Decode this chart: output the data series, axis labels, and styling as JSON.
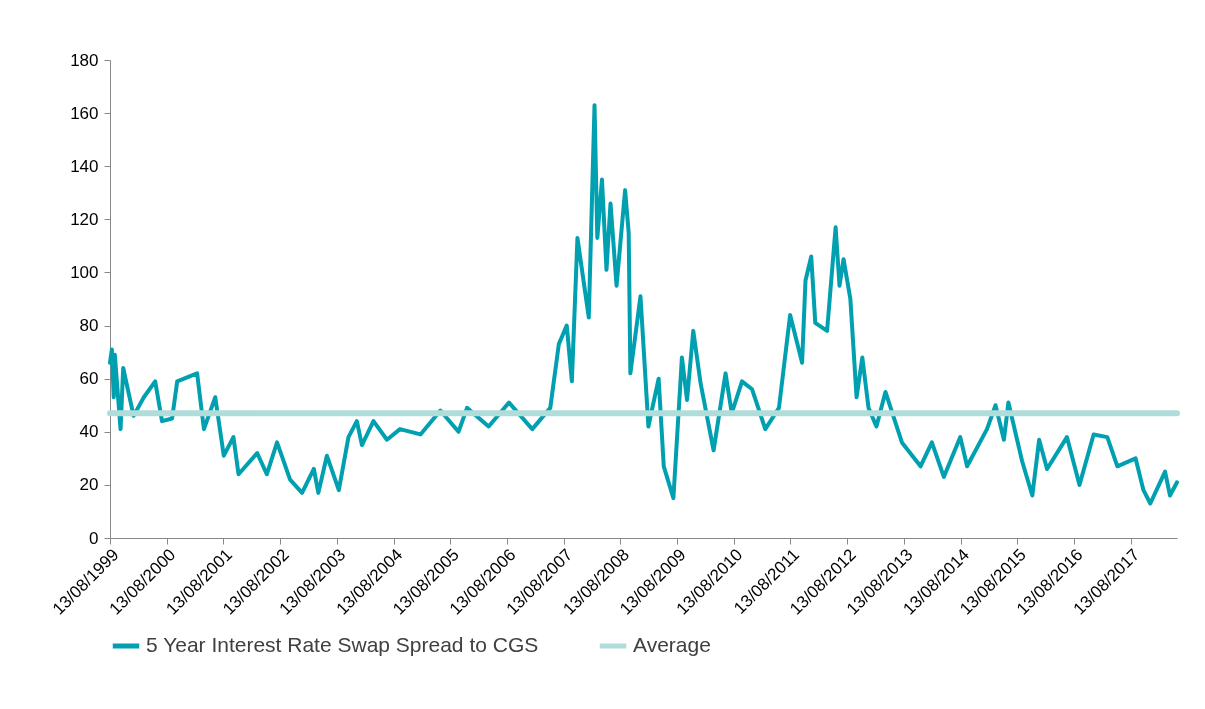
{
  "chart_data": {
    "type": "line",
    "xlim": [
      "1999-08-13",
      "2018-06-07"
    ],
    "ylim": [
      0,
      180
    ],
    "yticks": [
      0,
      20,
      40,
      60,
      80,
      100,
      120,
      140,
      160,
      180
    ],
    "xticks": [
      {
        "value": "1999-08-13",
        "label": "13/08/1999"
      },
      {
        "value": "2000-08-13",
        "label": "13/08/2000"
      },
      {
        "value": "2001-08-13",
        "label": "13/08/2001"
      },
      {
        "value": "2002-08-13",
        "label": "13/08/2002"
      },
      {
        "value": "2003-08-13",
        "label": "13/08/2003"
      },
      {
        "value": "2004-08-13",
        "label": "13/08/2004"
      },
      {
        "value": "2005-08-13",
        "label": "13/08/2005"
      },
      {
        "value": "2006-08-13",
        "label": "13/08/2006"
      },
      {
        "value": "2007-08-13",
        "label": "13/08/2007"
      },
      {
        "value": "2008-08-13",
        "label": "13/08/2008"
      },
      {
        "value": "2009-08-13",
        "label": "13/08/2009"
      },
      {
        "value": "2010-08-13",
        "label": "13/08/2010"
      },
      {
        "value": "2011-08-13",
        "label": "13/08/2011"
      },
      {
        "value": "2012-08-13",
        "label": "13/08/2012"
      },
      {
        "value": "2013-08-13",
        "label": "13/08/2013"
      },
      {
        "value": "2014-08-13",
        "label": "13/08/2014"
      },
      {
        "value": "2015-08-13",
        "label": "13/08/2015"
      },
      {
        "value": "2016-08-13",
        "label": "13/08/2016"
      },
      {
        "value": "2017-08-13",
        "label": "13/08/2017"
      }
    ],
    "legend": "bottom",
    "grid": false,
    "series": [
      {
        "name": "5 Year Interest Rate Swap Spread to CGS",
        "color": "#00a0b0",
        "x": [
          "1999-08-13",
          "1999-08-25",
          "1999-09-06",
          "1999-09-13",
          "1999-10-20",
          "1999-11-06",
          "2000-01-12",
          "2000-03-18",
          "2000-05-30",
          "2000-07-13",
          "2000-09-16",
          "2000-10-19",
          "2001-02-24",
          "2001-04-09",
          "2001-06-21",
          "2001-08-15",
          "2001-10-16",
          "2001-11-18",
          "2002-03-18",
          "2002-05-19",
          "2002-07-24",
          "2002-10-16",
          "2003-01-01",
          "2003-03-18",
          "2003-04-16",
          "2003-06-10",
          "2003-08-26",
          "2003-10-27",
          "2003-12-20",
          "2004-01-22",
          "2004-04-05",
          "2004-07-01",
          "2004-09-23",
          "2005-02-02",
          "2005-06-10",
          "2005-10-05",
          "2005-11-29",
          "2006-04-17",
          "2006-08-26",
          "2007-01-23",
          "2007-05-19",
          "2007-07-13",
          "2007-09-02",
          "2007-10-05",
          "2007-11-10",
          "2008-01-22",
          "2008-02-28",
          "2008-03-17",
          "2008-04-16",
          "2008-05-15",
          "2008-06-10",
          "2008-07-19",
          "2008-09-12",
          "2008-10-05",
          "2008-10-16",
          "2008-12-20",
          "2009-02-09",
          "2009-04-16",
          "2009-05-19",
          "2009-07-20",
          "2009-09-13",
          "2009-10-16",
          "2009-11-25",
          "2010-01-12",
          "2010-04-05",
          "2010-06-21",
          "2010-07-31",
          "2010-10-05",
          "2010-12-09",
          "2011-03-04",
          "2011-05-31",
          "2011-08-11",
          "2011-10-27",
          "2011-11-18",
          "2011-12-25",
          "2012-01-20",
          "2012-04-05",
          "2012-05-30",
          "2012-06-24",
          "2012-07-20",
          "2012-09-02",
          "2012-10-12",
          "2012-11-18",
          "2012-12-28",
          "2013-02-17",
          "2013-04-16",
          "2013-07-31",
          "2013-11-28",
          "2014-02-09",
          "2014-04-27",
          "2014-08-11",
          "2014-09-24",
          "2015-01-30",
          "2015-03-26",
          "2015-05-19",
          "2015-06-17",
          "2015-09-13",
          "2015-11-18",
          "2016-01-01",
          "2016-02-21",
          "2016-06-28",
          "2016-09-17",
          "2016-12-17",
          "2017-03-15",
          "2017-05-19",
          "2017-09-13",
          "2017-11-03",
          "2017-12-17",
          "2018-03-22",
          "2018-04-23",
          "2018-06-07"
        ],
        "values": [
          66,
          71,
          53,
          69,
          41,
          64,
          46,
          53,
          59,
          44,
          45,
          59,
          62,
          41,
          53,
          31,
          38,
          24,
          32,
          24,
          36,
          22,
          17,
          26,
          17,
          31,
          18,
          38,
          44,
          35,
          44,
          37,
          41,
          39,
          48,
          40,
          49,
          42,
          51,
          41,
          49,
          73,
          80,
          59,
          113,
          83,
          163,
          113,
          135,
          101,
          126,
          95,
          131,
          115,
          62,
          91,
          42,
          60,
          27,
          15,
          68,
          52,
          78,
          58,
          33,
          62,
          47,
          59,
          56,
          41,
          49,
          84,
          66,
          97,
          106,
          81,
          78,
          117,
          95,
          105,
          90,
          53,
          68,
          49,
          42,
          55,
          36,
          27,
          36,
          23,
          38,
          27,
          41,
          50,
          37,
          51,
          29,
          16,
          37,
          26,
          38,
          20,
          39,
          38,
          27,
          30,
          18,
          13,
          25,
          16,
          21
        ]
      },
      {
        "name": "Average",
        "color": "#b0dcd9",
        "x": [
          "1999-08-13",
          "2018-06-07"
        ],
        "values": [
          47,
          47
        ]
      }
    ]
  }
}
